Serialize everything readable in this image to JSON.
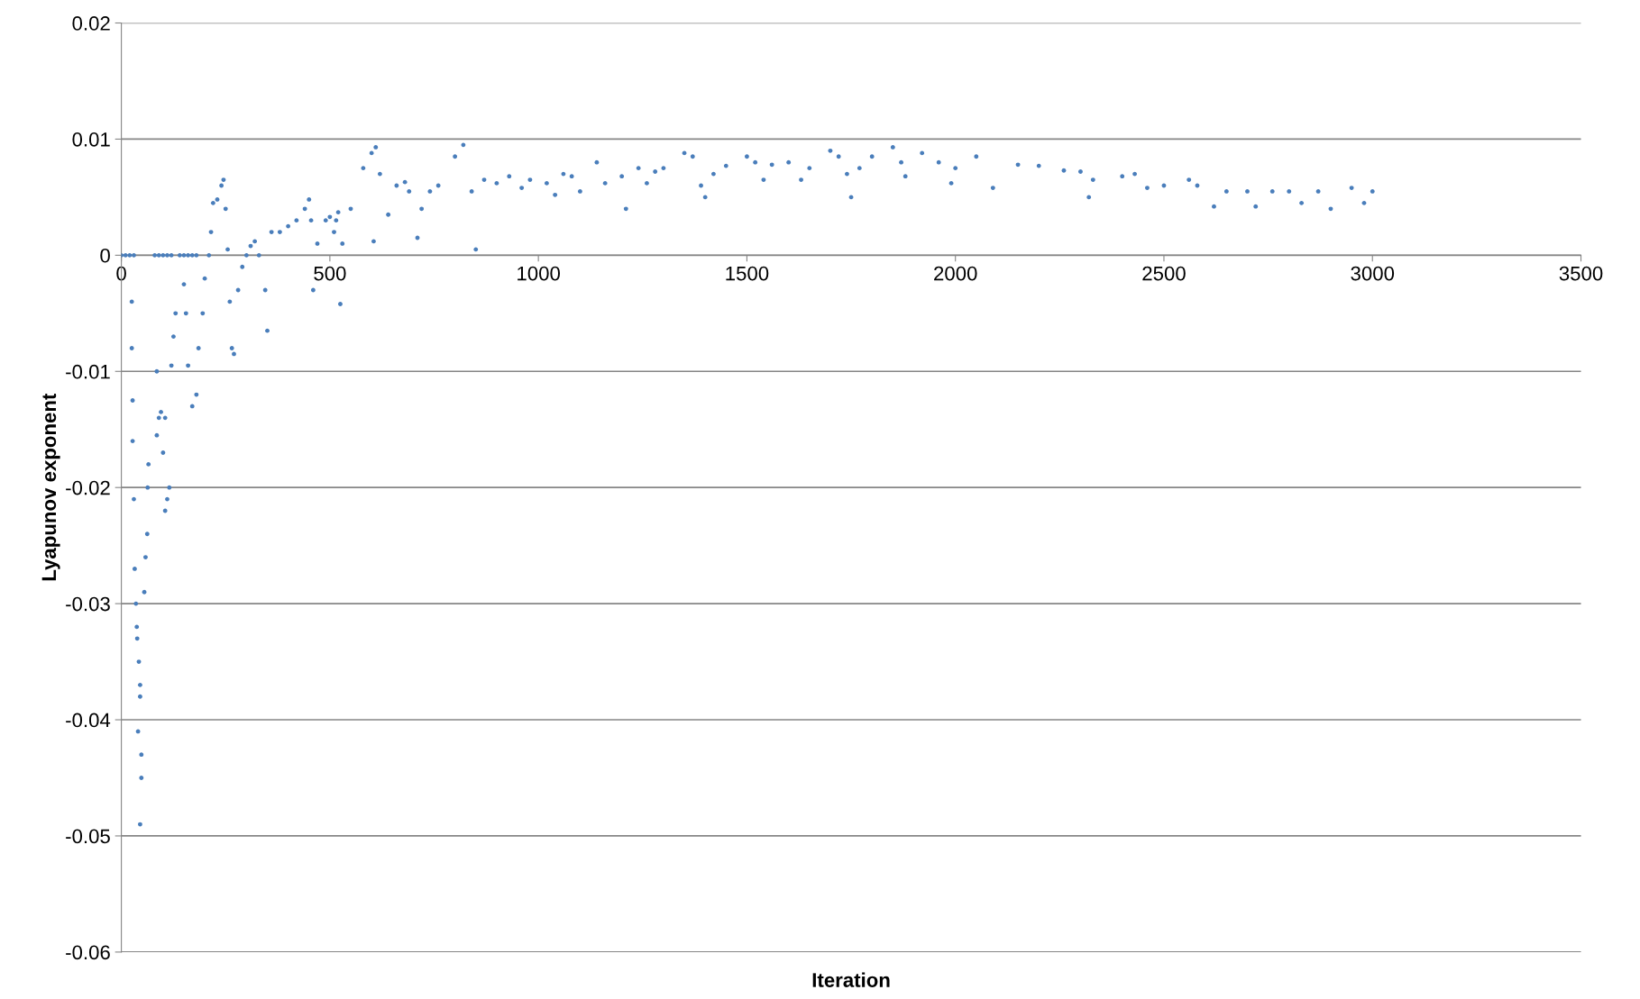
{
  "chart_data": {
    "type": "scatter",
    "xlabel": "Iteration",
    "ylabel": "Lyapunov exponent",
    "xlim": [
      0,
      3500
    ],
    "xticks": [
      0,
      500,
      1000,
      1500,
      2000,
      2500,
      3000,
      3500
    ],
    "ylim": [
      -0.06,
      0.02
    ],
    "yticks": [
      -0.06,
      -0.05,
      -0.04,
      -0.03,
      -0.02,
      -0.01,
      0,
      0.01,
      0.02
    ],
    "grid": "y",
    "marker": "circle",
    "legend": false,
    "series": [
      {
        "color": "#4a7ebb",
        "x": [
          0,
          10,
          20,
          30,
          80,
          90,
          100,
          110,
          120,
          140,
          150,
          160,
          170,
          180,
          25,
          25,
          27,
          27,
          30,
          32,
          35,
          37,
          38,
          42,
          45,
          45,
          40,
          48,
          48,
          45,
          55,
          58,
          62,
          65,
          63,
          85,
          90,
          95,
          85,
          100,
          105,
          110,
          115,
          105,
          120,
          125,
          130,
          150,
          155,
          160,
          170,
          180,
          185,
          195,
          200,
          210,
          215,
          220,
          230,
          240,
          245,
          250,
          255,
          260,
          265,
          270,
          280,
          290,
          300,
          310,
          320,
          330,
          345,
          350,
          360,
          380,
          400,
          420,
          440,
          450,
          455,
          460,
          470,
          490,
          500,
          510,
          515,
          520,
          525,
          530,
          550,
          580,
          600,
          605,
          610,
          620,
          640,
          660,
          680,
          690,
          710,
          720,
          740,
          760,
          800,
          820,
          840,
          850,
          870,
          900,
          930,
          960,
          980,
          1020,
          1040,
          1060,
          1080,
          1100,
          1140,
          1160,
          1200,
          1210,
          1240,
          1260,
          1280,
          1300,
          1350,
          1370,
          1390,
          1400,
          1420,
          1450,
          1500,
          1520,
          1540,
          1560,
          1600,
          1630,
          1650,
          1700,
          1720,
          1740,
          1750,
          1770,
          1800,
          1850,
          1870,
          1880,
          1920,
          1960,
          1990,
          2000,
          2050,
          2090,
          2150,
          2200,
          2260,
          2300,
          2320,
          2330,
          2400,
          2430,
          2460,
          2500,
          2560,
          2580,
          2620,
          2650,
          2700,
          2720,
          2760,
          2800,
          2830,
          2870,
          2900,
          2950,
          2980,
          3000
        ],
        "values": [
          0,
          0,
          0,
          0,
          0,
          0,
          0,
          0,
          0,
          0,
          0,
          0,
          0,
          0,
          -0.004,
          -0.008,
          -0.0125,
          -0.016,
          -0.021,
          -0.027,
          -0.03,
          -0.032,
          -0.033,
          -0.035,
          -0.037,
          -0.038,
          -0.041,
          -0.043,
          -0.045,
          -0.049,
          -0.029,
          -0.026,
          -0.024,
          -0.018,
          -0.02,
          -0.0155,
          -0.014,
          -0.0135,
          -0.01,
          -0.017,
          -0.022,
          -0.021,
          -0.02,
          -0.014,
          -0.0095,
          -0.007,
          -0.005,
          -0.0025,
          -0.005,
          -0.0095,
          -0.013,
          -0.012,
          -0.008,
          -0.005,
          -0.002,
          0.0,
          0.002,
          0.0045,
          0.0048,
          0.006,
          0.0065,
          0.004,
          0.0005,
          -0.004,
          -0.008,
          -0.0085,
          -0.003,
          -0.001,
          0.0,
          0.0008,
          0.0012,
          0.0,
          -0.003,
          -0.0065,
          0.002,
          0.002,
          0.0025,
          0.003,
          0.004,
          0.0048,
          0.003,
          -0.003,
          0.001,
          0.003,
          0.0033,
          0.002,
          0.003,
          0.0037,
          -0.0042,
          0.001,
          0.004,
          0.0075,
          0.0088,
          0.0012,
          0.0093,
          0.007,
          0.0035,
          0.006,
          0.0063,
          0.0055,
          0.0015,
          0.004,
          0.0055,
          0.006,
          0.0085,
          0.0095,
          0.0055,
          0.0005,
          0.0065,
          0.0062,
          0.0068,
          0.0058,
          0.0065,
          0.0062,
          0.0052,
          0.007,
          0.0068,
          0.0055,
          0.008,
          0.0062,
          0.0068,
          0.004,
          0.0075,
          0.0062,
          0.0072,
          0.0075,
          0.0088,
          0.0085,
          0.006,
          0.005,
          0.007,
          0.0077,
          0.0085,
          0.008,
          0.0065,
          0.0078,
          0.008,
          0.0065,
          0.0075,
          0.009,
          0.0085,
          0.007,
          0.005,
          0.0075,
          0.0085,
          0.0093,
          0.008,
          0.0068,
          0.0088,
          0.008,
          0.0062,
          0.0075,
          0.0085,
          0.0058,
          0.0078,
          0.0077,
          0.0073,
          0.0072,
          0.005,
          0.0065,
          0.0068,
          0.007,
          0.0058,
          0.006,
          0.0065,
          0.006,
          0.0042,
          0.0055,
          0.0055,
          0.0042,
          0.0055,
          0.0055,
          0.0045,
          0.0055,
          0.004,
          0.0058,
          0.0045,
          0.0055
        ]
      }
    ]
  }
}
